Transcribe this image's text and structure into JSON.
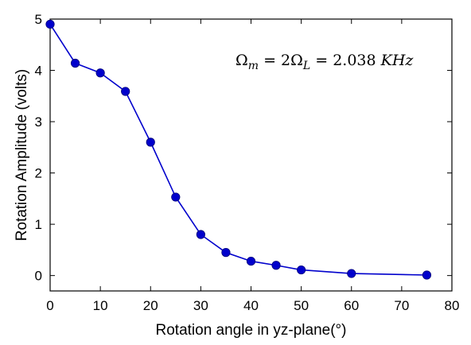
{
  "chart_data": {
    "type": "line",
    "xlabel": "Rotation angle in yz-plane(°)",
    "ylabel": "Rotation Amplitude (volts)",
    "xlim": [
      0,
      80
    ],
    "ylim": [
      -0.3,
      5
    ],
    "x_ticks": [
      0,
      10,
      20,
      30,
      40,
      50,
      60,
      70,
      80
    ],
    "y_ticks": [
      0,
      1,
      2,
      3,
      4,
      5
    ],
    "grid": false,
    "legend": "none",
    "series": [
      {
        "color": "#0000cc",
        "marker_color": "#0000cc",
        "x": [
          0,
          5,
          10,
          15,
          20,
          25,
          30,
          35,
          40,
          45,
          50,
          60,
          75
        ],
        "y": [
          4.9,
          4.14,
          3.95,
          3.59,
          2.6,
          1.53,
          0.8,
          0.45,
          0.28,
          0.2,
          0.11,
          0.04,
          0.01
        ]
      }
    ],
    "annotation": {
      "text": "Ωm = 2ΩL = 2.038 KHz",
      "omega": "Ω",
      "sub_m": "m",
      "equals1": " = 2",
      "sub_l": "L",
      "rest": " = 2.038 ",
      "unit": "KHz"
    }
  }
}
